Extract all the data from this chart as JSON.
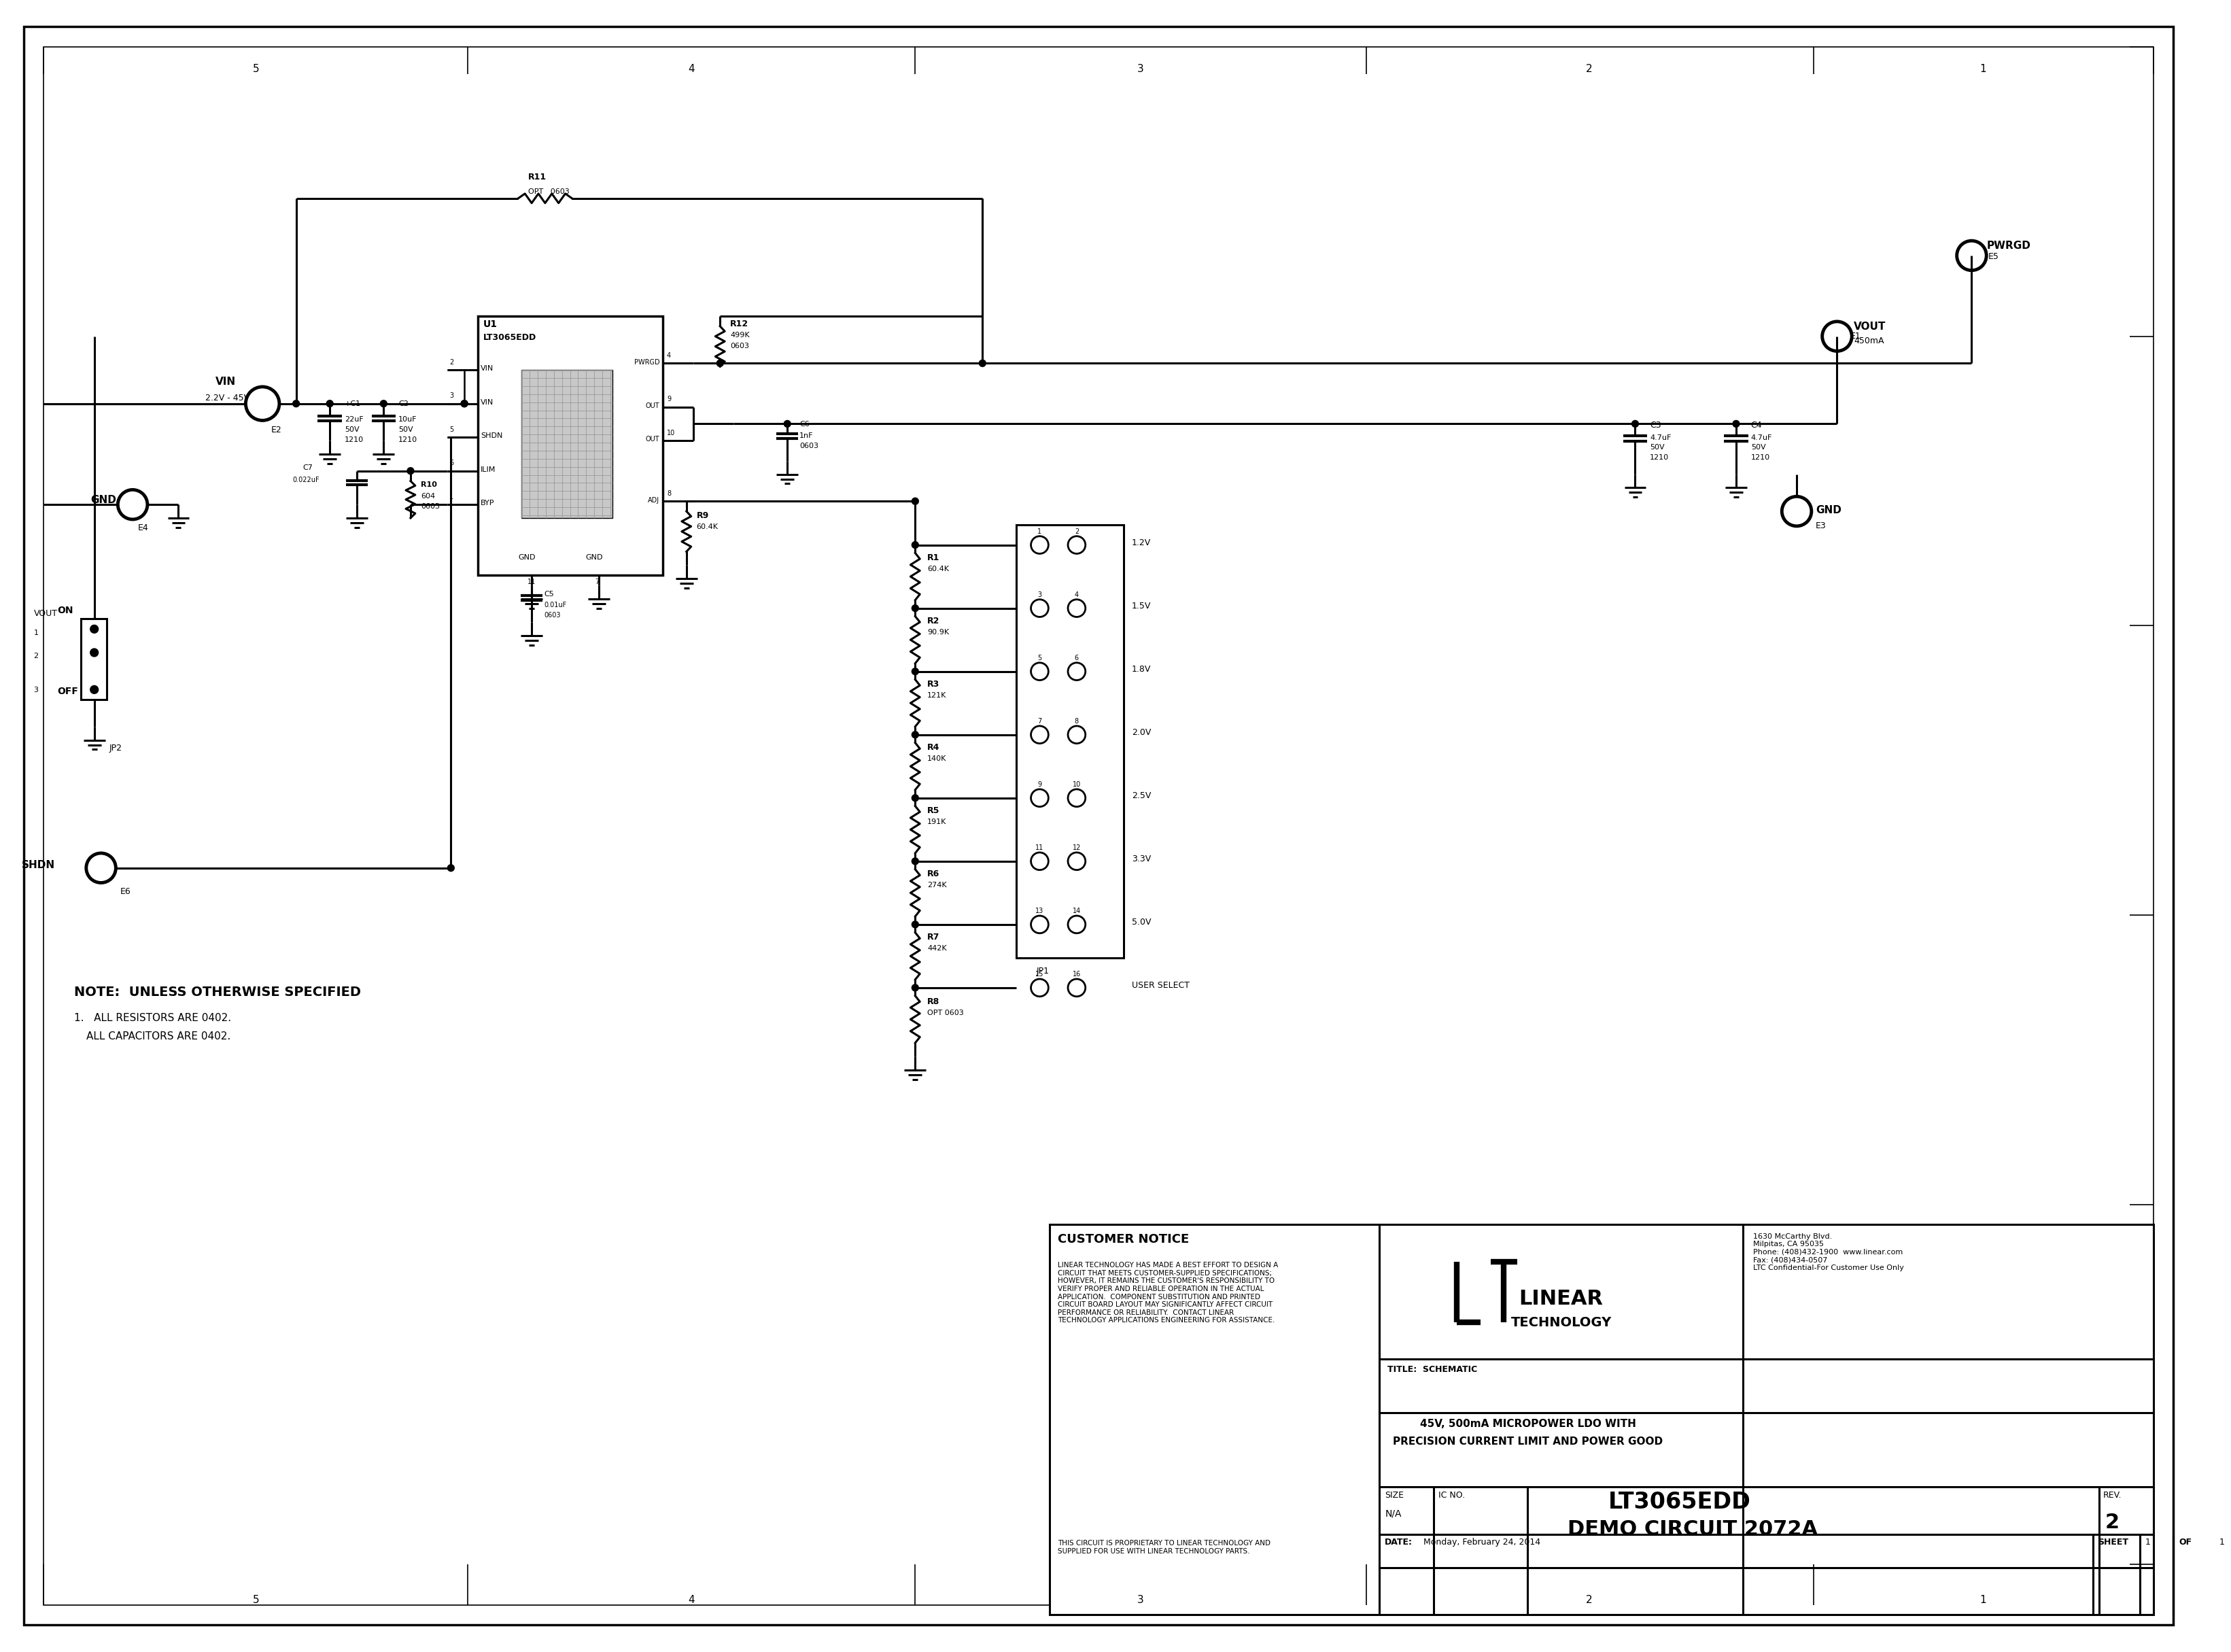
{
  "bg_color": "#ffffff",
  "line_color": "#000000",
  "fig_width": 32.45,
  "fig_height": 24.35,
  "title_block": {
    "customer_notice_title": "CUSTOMER NOTICE",
    "customer_notice_body": "LINEAR TECHNOLOGY HAS MADE A BEST EFFORT TO DESIGN A\nCIRCUIT THAT MEETS CUSTOMER-SUPPLIED SPECIFICATIONS;\nHOWEVER, IT REMAINS THE CUSTOMER'S RESPONSIBILITY TO\nVERIFY PROPER AND RELIABLE OPERATION IN THE ACTUAL\nAPPLICATION.  COMPONENT SUBSTITUTION AND PRINTED\nCIRCUIT BOARD LAYOUT MAY SIGNIFICANTLY AFFECT CIRCUIT\nPERFORMANCE OR RELIABILITY.  CONTACT LINEAR\nTECHNOLOGY APPLICATIONS ENGINEERING FOR ASSISTANCE.",
    "proprietary_note": "THIS CIRCUIT IS PROPRIETARY TO LINEAR TECHNOLOGY AND\nSUPPLIED FOR USE WITH LINEAR TECHNOLOGY PARTS.",
    "company_address": "1630 McCarthy Blvd.\nMilpitas, CA 95035\nPhone: (408)432-1900  www.linear.com\nFax: (408)434-0507\nLTC Confidential-For Customer Use Only",
    "title_label": "TITLE:  SCHEMATIC",
    "title_value1": "45V, 500mA MICROPOWER LDO WITH",
    "title_value2": "PRECISION CURRENT LIMIT AND POWER GOOD",
    "size_label": "SIZE",
    "size_value": "N/A",
    "ic_no_label": "IC NO.",
    "ic_value": "LT3065EDD",
    "demo_circuit": "DEMO CIRCUIT 2072A",
    "rev_label": "REV.",
    "rev_value": "2",
    "date_label": "DATE:",
    "date_value": "Monday, February 24, 2014",
    "sheet_info": "SHEET  1  OF  1"
  },
  "note_line1": "NOTE:  UNLESS OTHERWISE SPECIFIED",
  "note_line2": "1.   ALL RESISTORS ARE 0402.",
  "note_line3": "     ALL CAPACITORS ARE 0402.",
  "voltage_labels": [
    "1.2V",
    "1.5V",
    "1.8V",
    "2.0V",
    "2.5V",
    "3.3V",
    "5.0V",
    "USER SELECT"
  ],
  "resistor_labels": [
    "R1\n60.4K",
    "R2\n90.9K",
    "R3\n121K",
    "R4\n140K",
    "R5\n191K",
    "R6\n274K",
    "R7\n442K",
    "R8\nOPT 0603"
  ]
}
